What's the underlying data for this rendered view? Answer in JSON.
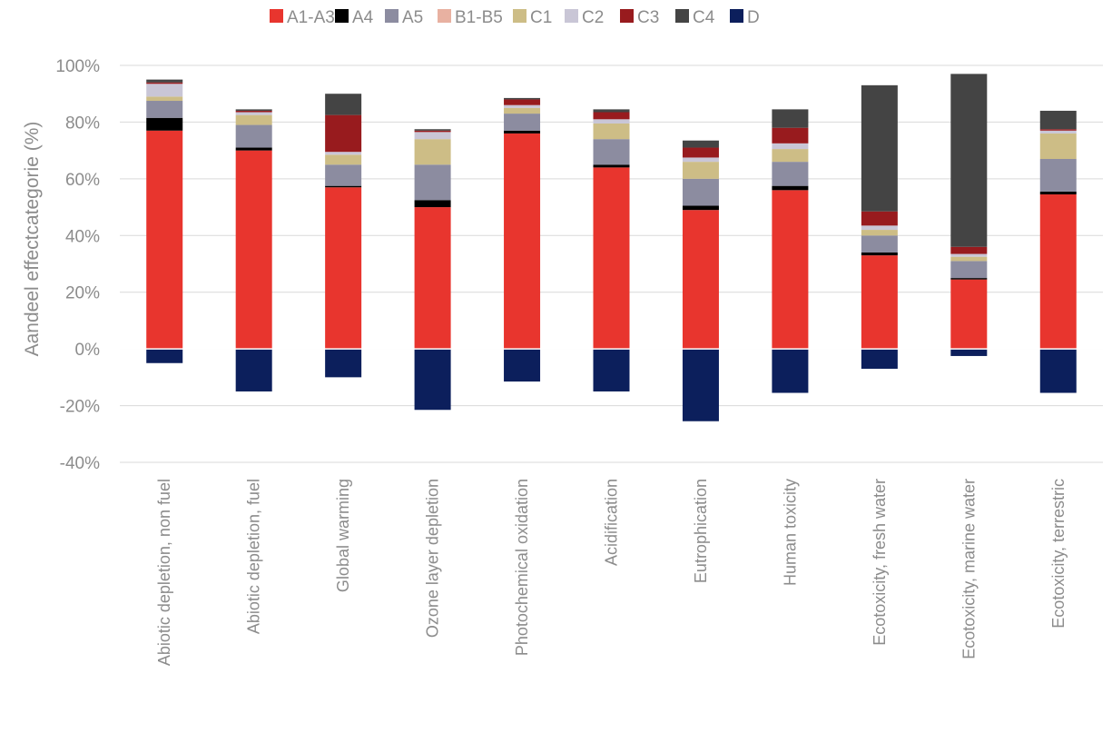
{
  "chart_data": {
    "type": "bar",
    "stacked": true,
    "title": "",
    "xlabel": "",
    "ylabel": "Aandeel effectcategorie (%)",
    "ylim": [
      -40,
      100
    ],
    "yticks": [
      -40,
      -20,
      0,
      20,
      40,
      60,
      80,
      100
    ],
    "ytick_labels": [
      "-40%",
      "-20%",
      "0%",
      "20%",
      "40%",
      "60%",
      "80%",
      "100%"
    ],
    "grid": "horizontal",
    "legend": "top",
    "categories": [
      "Abiotic depletion, non fuel",
      "Abiotic depletion, fuel",
      "Global warming",
      "Ozone layer depletion",
      "Photochemical oxidation",
      "Acidification",
      "Eutrophication",
      "Human toxicity",
      "Ecotoxicity, fresh water",
      "Ecotoxicity, marine water",
      "Ecotoxicity, terrestric"
    ],
    "series": [
      {
        "name": "A1-A3",
        "color": "#e8352e",
        "values": [
          77,
          70,
          57,
          50,
          76,
          64,
          49,
          56,
          33,
          24.5,
          54.5
        ]
      },
      {
        "name": "A4",
        "color": "#000000",
        "values": [
          4.5,
          1,
          0.5,
          2.5,
          1,
          1,
          1.5,
          1.5,
          1,
          0.5,
          1
        ]
      },
      {
        "name": "A5",
        "color": "#8c8ca0",
        "values": [
          6,
          8,
          7.5,
          12.5,
          6,
          9,
          9.5,
          8.5,
          6,
          6,
          11.5
        ]
      },
      {
        "name": "B1-B5",
        "color": "#e8b1a1",
        "values": [
          0,
          0,
          0,
          0,
          0,
          0,
          0,
          0,
          0,
          0,
          0
        ]
      },
      {
        "name": "C1",
        "color": "#cdbd86",
        "values": [
          1.5,
          3.5,
          3.5,
          9,
          2,
          5.5,
          6,
          4.5,
          2,
          1.5,
          9
        ]
      },
      {
        "name": "C2",
        "color": "#c9c6d6",
        "values": [
          4.5,
          1,
          1,
          2.5,
          1,
          1.5,
          1.5,
          2,
          1.5,
          1,
          1
        ]
      },
      {
        "name": "C3",
        "color": "#981b1e",
        "values": [
          0.5,
          0.5,
          13,
          0.5,
          2,
          2.5,
          3.5,
          5.5,
          5,
          2.5,
          0.5
        ]
      },
      {
        "name": "C4",
        "color": "#444444",
        "values": [
          1,
          0.5,
          7.5,
          0.5,
          0.5,
          1,
          2.5,
          6.5,
          44.5,
          61,
          6.5
        ]
      },
      {
        "name": "D",
        "color": "#0c1f5c",
        "values": [
          -5,
          -15,
          -10,
          -21.5,
          -11.5,
          -15,
          -25.5,
          -15.5,
          -7,
          -2.5,
          -15.5
        ]
      }
    ]
  }
}
